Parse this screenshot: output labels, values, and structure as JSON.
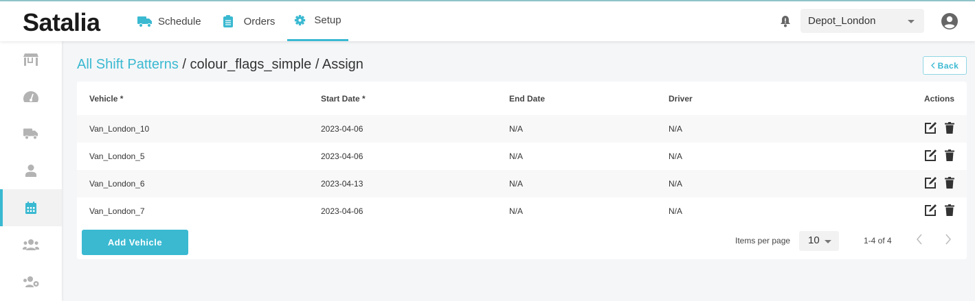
{
  "header": {
    "logo": "Satalia",
    "nav": [
      {
        "label": "Schedule",
        "icon": "truck-icon"
      },
      {
        "label": "Orders",
        "icon": "clipboard-icon"
      },
      {
        "label": "Setup",
        "icon": "gear-icon",
        "active": true
      }
    ],
    "depot": "Depot_London"
  },
  "sidebar": {
    "items": [
      "store-icon",
      "dashboard-icon",
      "truck-icon",
      "user-icon",
      "calendar-icon",
      "users-icon",
      "users-gear-icon"
    ],
    "active": "calendar-icon"
  },
  "breadcrumb": {
    "link": "All Shift Patterns",
    "sep": " / ",
    "pattern": "colour_flags_simple",
    "page": "Assign"
  },
  "back_label": "Back",
  "table": {
    "headers": [
      "Vehicle *",
      "Start Date *",
      "End Date",
      "Driver",
      "Actions"
    ],
    "rows": [
      [
        "Van_London_10",
        "2023-04-06",
        "N/A",
        "N/A"
      ],
      [
        "Van_London_5",
        "2023-04-06",
        "N/A",
        "N/A"
      ],
      [
        "Van_London_6",
        "2023-04-13",
        "N/A",
        "N/A"
      ],
      [
        "Van_London_7",
        "2023-04-06",
        "N/A",
        "N/A"
      ]
    ]
  },
  "footer": {
    "add_label": "Add Vehicle",
    "items_per_page_label": "Items per page",
    "items_per_page": "10",
    "range": "1-4 of 4"
  },
  "colors": {
    "accent": "#3ab9d1",
    "icon_grey": "#b3b3b3"
  }
}
